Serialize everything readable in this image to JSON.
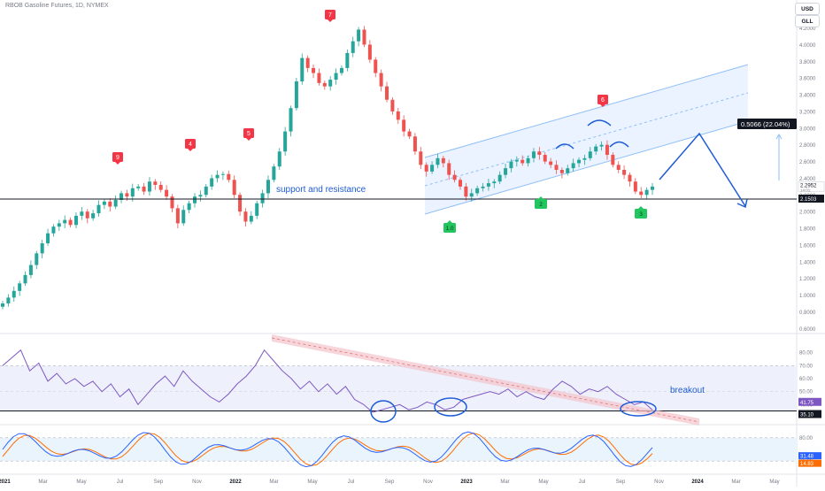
{
  "header": {
    "symbol_title": "RBOB Gasoline Futures, 1D, NYMEX",
    "currency_button": "USD",
    "unit_button": "GLL"
  },
  "colors": {
    "up": "#26a69a",
    "down": "#ef5350",
    "channel_fill": "#e3efff",
    "channel_line": "#90bff9",
    "drawing": "#1e5bd6",
    "rsi_line": "#7e57c2",
    "stoch_k": "#2962ff",
    "stoch_d": "#ff6d00",
    "trend_band": "#f3c4cc",
    "tag_red": "#f23645",
    "tag_green": "#22c55e"
  },
  "chart_data": [
    {
      "type": "candlestick",
      "title": "RBOB Gasoline Futures, 1D, NYMEX",
      "y_axis_ticks": [
        "4.2000",
        "4.0000",
        "3.8000",
        "3.6000",
        "3.4000",
        "3.2000",
        "3.0000",
        "2.8000",
        "2.6000",
        "2.4000",
        "2.2000",
        "2.0000",
        "1.8000",
        "1.6000",
        "1.4000",
        "1.2000",
        "1.0000",
        "0.8000",
        "0.6000"
      ],
      "x_axis_ticks": [
        "2021",
        "Mar",
        "May",
        "Jul",
        "Sep",
        "Nov",
        "2022",
        "Mar",
        "May",
        "Jul",
        "Sep",
        "Nov",
        "2023",
        "Mar",
        "May",
        "Jul",
        "Sep",
        "Nov",
        "2024",
        "Mar",
        "May"
      ],
      "ylim": [
        0.55,
        4.45
      ],
      "closes": [
        0.9,
        0.97,
        1.05,
        1.14,
        1.24,
        1.36,
        1.5,
        1.62,
        1.74,
        1.82,
        1.86,
        1.9,
        1.84,
        1.95,
        2.0,
        1.92,
        1.98,
        2.08,
        2.12,
        2.06,
        2.14,
        2.22,
        2.18,
        2.28,
        2.3,
        2.24,
        2.36,
        2.32,
        2.26,
        2.18,
        2.04,
        1.86,
        2.02,
        2.1,
        2.18,
        2.2,
        2.3,
        2.4,
        2.44,
        2.45,
        2.38,
        2.2,
        2.0,
        1.88,
        1.95,
        2.1,
        2.22,
        2.38,
        2.54,
        2.72,
        2.96,
        3.24,
        3.56,
        3.84,
        3.72,
        3.66,
        3.54,
        3.5,
        3.58,
        3.66,
        3.72,
        3.9,
        4.04,
        4.18,
        4.0,
        3.82,
        3.66,
        3.5,
        3.34,
        3.2,
        3.1,
        2.96,
        2.9,
        2.72,
        2.56,
        2.48,
        2.56,
        2.64,
        2.58,
        2.44,
        2.38,
        2.3,
        2.18,
        2.22,
        2.28,
        2.3,
        2.34,
        2.36,
        2.44,
        2.52,
        2.6,
        2.62,
        2.58,
        2.64,
        2.72,
        2.68,
        2.6,
        2.56,
        2.5,
        2.46,
        2.52,
        2.58,
        2.62,
        2.64,
        2.72,
        2.78,
        2.8,
        2.68,
        2.56,
        2.5,
        2.44,
        2.36,
        2.24,
        2.2,
        2.26,
        2.3
      ],
      "annotations": {
        "tags": [
          "9",
          "4",
          "5",
          "7",
          "6"
        ],
        "bottom_tags": [
          "1.0",
          "2",
          "3"
        ],
        "support_label": "support and resistance",
        "measure_label": "0.5066 (22.04%)",
        "last_price": "2.2952",
        "countdown": "14:01:",
        "support_price": "2.1503"
      }
    },
    {
      "type": "line",
      "name": "RSI",
      "y_axis_ticks": [
        "80.00",
        "70.00",
        "60.00",
        "50.00",
        "40.00"
      ],
      "values": [
        70,
        76,
        82,
        66,
        72,
        58,
        64,
        56,
        60,
        54,
        58,
        50,
        56,
        46,
        52,
        40,
        48,
        56,
        62,
        54,
        66,
        58,
        52,
        46,
        42,
        48,
        56,
        62,
        70,
        82,
        74,
        66,
        60,
        52,
        58,
        50,
        56,
        48,
        54,
        44,
        40,
        34,
        36,
        38,
        40,
        36,
        38,
        42,
        40,
        36,
        38,
        44,
        46,
        48,
        50,
        48,
        52,
        46,
        50,
        46,
        44,
        52,
        58,
        54,
        48,
        52,
        50,
        54,
        48,
        44,
        40,
        42,
        36
      ],
      "current_label": "41.75",
      "level_label": "35.10",
      "annotation": "breakout"
    },
    {
      "type": "line",
      "name": "Stochastic",
      "y_axis_ticks": [
        "80.00",
        "20.00"
      ],
      "current_k": "31.48",
      "current_d": "14.83"
    }
  ]
}
